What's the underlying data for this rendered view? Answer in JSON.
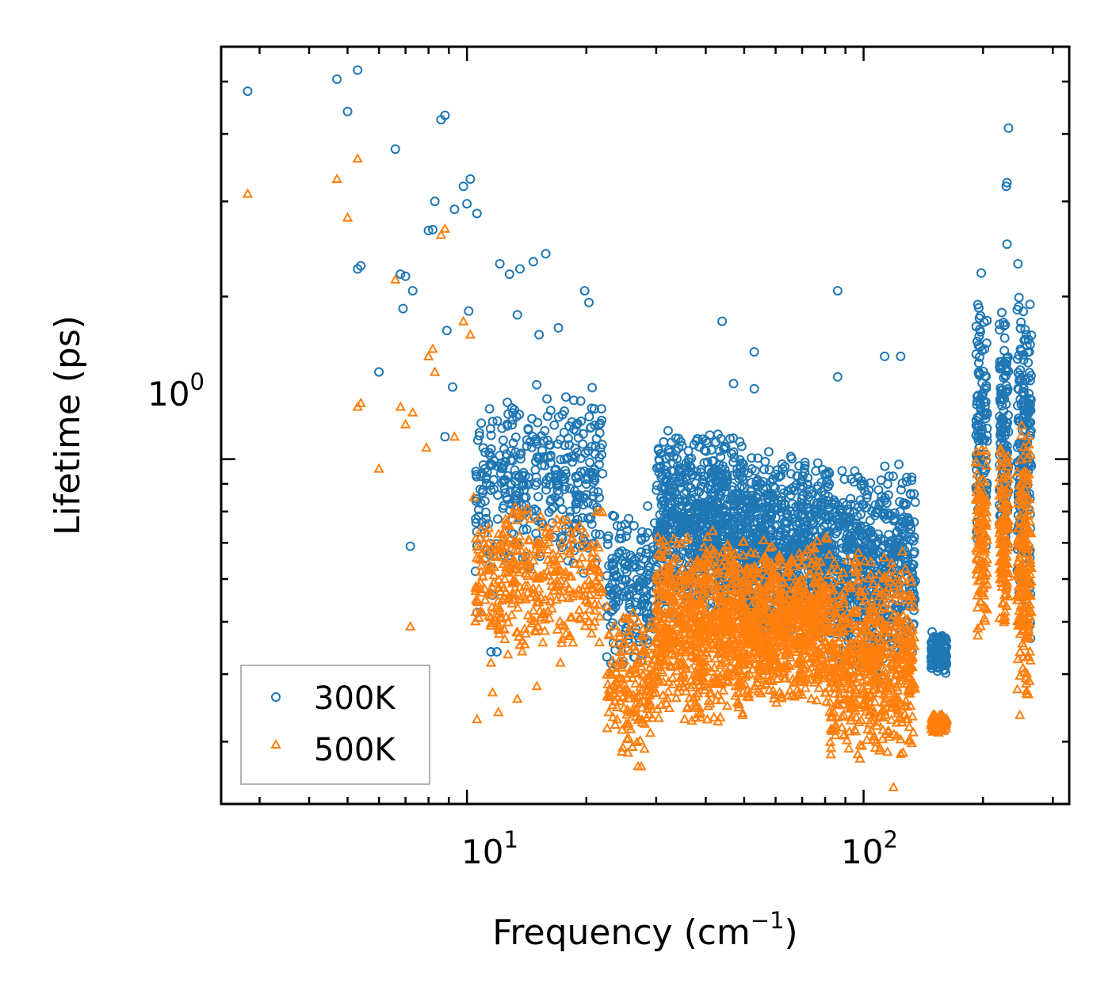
{
  "chart_data": {
    "type": "scatter",
    "xlabel": "Frequency (cm",
    "xlabel_exponent": "−1",
    "xlabel_suffix": ")",
    "ylabel": "Lifetime (ps)",
    "xscale": "log",
    "yscale": "log",
    "xlim": [
      2.4,
      330
    ],
    "ylim": [
      0.23,
      5.8
    ],
    "x_ticks": [
      {
        "value": 10,
        "base": "10",
        "exponent": "1"
      },
      {
        "value": 100,
        "base": "10",
        "exponent": "2"
      }
    ],
    "y_ticks": [
      {
        "value": 1,
        "base": "10",
        "exponent": "0"
      }
    ],
    "legend_position": "lower-left",
    "colors": {
      "series_300K": "#1f77b4",
      "series_500K": "#ff7f0e"
    },
    "series": [
      {
        "name": "300K",
        "marker": "circle",
        "color": "#1f77b4",
        "points": [
          [
            2.8,
            4.8
          ],
          [
            4.7,
            5.05
          ],
          [
            5.3,
            5.25
          ],
          [
            5.0,
            4.4
          ],
          [
            6.6,
            3.75
          ],
          [
            8.3,
            3.0
          ],
          [
            8.6,
            4.25
          ],
          [
            8.8,
            4.33
          ],
          [
            9.8,
            3.2
          ],
          [
            10.2,
            3.3
          ],
          [
            10.6,
            2.85
          ],
          [
            5.3,
            2.25
          ],
          [
            5.4,
            2.28
          ],
          [
            6.8,
            2.2
          ],
          [
            7.0,
            2.18
          ],
          [
            7.3,
            2.05
          ],
          [
            6.9,
            1.9
          ],
          [
            8.0,
            2.65
          ],
          [
            8.2,
            2.66
          ],
          [
            8.9,
            1.73
          ],
          [
            9.3,
            2.9
          ],
          [
            10.0,
            2.97
          ],
          [
            6.0,
            1.45
          ],
          [
            9.2,
            1.36
          ],
          [
            10.1,
            1.88
          ],
          [
            12.1,
            2.3
          ],
          [
            12.8,
            2.2
          ],
          [
            13.6,
            2.25
          ],
          [
            14.7,
            2.32
          ],
          [
            15.8,
            2.4
          ],
          [
            19.8,
            2.05
          ],
          [
            20.3,
            1.95
          ],
          [
            8.8,
            1.1
          ],
          [
            7.2,
            0.69
          ],
          [
            10.6,
            0.52
          ],
          [
            11.6,
            0.56
          ],
          [
            11.5,
            0.44
          ],
          [
            11.9,
            0.44
          ],
          [
            13.4,
            1.85
          ],
          [
            15.2,
            1.7
          ],
          [
            17.0,
            1.75
          ],
          [
            86.0,
            2.05
          ],
          [
            44.0,
            1.8
          ],
          [
            53.0,
            1.58
          ],
          [
            113.0,
            1.55
          ],
          [
            124.0,
            1.55
          ],
          [
            86.0,
            1.42
          ],
          [
            53.0,
            1.35
          ],
          [
            47.0,
            1.38
          ],
          [
            232.0,
            4.1
          ],
          [
            229.0,
            3.2
          ],
          [
            230.0,
            3.25
          ],
          [
            198.0,
            2.21
          ],
          [
            230.0,
            2.5
          ],
          [
            245.0,
            2.3
          ]
        ],
        "clusters": [
          {
            "x": [
              10.5,
              22.0
            ],
            "y": [
              0.6,
              1.4
            ],
            "n": 380
          },
          {
            "x": [
              22.5,
              30.0
            ],
            "y": [
              0.4,
              0.85
            ],
            "n": 180
          },
          {
            "x": [
              30.0,
              50.0
            ],
            "y": [
              0.5,
              1.15
            ],
            "n": 750
          },
          {
            "x": [
              50.0,
              82.0
            ],
            "y": [
              0.45,
              1.05
            ],
            "n": 750
          },
          {
            "x": [
              82.0,
              135.0
            ],
            "y": [
              0.38,
              1.0
            ],
            "n": 650
          },
          {
            "x": [
              148.0,
              162.0
            ],
            "y": [
              0.4,
              0.48
            ],
            "n": 120
          },
          {
            "x": [
              192.0,
              205.0
            ],
            "y": [
              0.6,
              2.1
            ],
            "n": 120
          },
          {
            "x": [
              220.0,
              232.0
            ],
            "y": [
              0.65,
              1.95
            ],
            "n": 130
          },
          {
            "x": [
              244.0,
              265.0
            ],
            "y": [
              0.42,
              2.25
            ],
            "n": 200
          }
        ]
      },
      {
        "name": "500K",
        "marker": "triangle",
        "color": "#ff7f0e",
        "points": [
          [
            2.8,
            3.1
          ],
          [
            4.7,
            3.3
          ],
          [
            5.3,
            3.6
          ],
          [
            5.0,
            2.8
          ],
          [
            6.6,
            2.15
          ],
          [
            8.3,
            1.45
          ],
          [
            8.6,
            2.6
          ],
          [
            8.8,
            2.67
          ],
          [
            9.8,
            1.8
          ],
          [
            10.2,
            1.7
          ],
          [
            5.3,
            1.25
          ],
          [
            5.4,
            1.27
          ],
          [
            6.0,
            0.96
          ],
          [
            6.8,
            1.25
          ],
          [
            7.0,
            1.16
          ],
          [
            7.3,
            1.22
          ],
          [
            7.9,
            1.05
          ],
          [
            8.0,
            1.55
          ],
          [
            8.2,
            1.6
          ],
          [
            9.3,
            1.1
          ],
          [
            10.4,
            0.85
          ],
          [
            7.2,
            0.49
          ],
          [
            10.6,
            0.33
          ],
          [
            11.6,
            0.37
          ],
          [
            11.5,
            0.42
          ],
          [
            12.0,
            0.34
          ],
          [
            13.4,
            0.36
          ],
          [
            15.0,
            0.38
          ],
          [
            17.2,
            0.42
          ],
          [
            27.0,
            0.27
          ],
          [
            27.5,
            0.27
          ],
          [
            119.0,
            0.247
          ]
        ],
        "clusters": [
          {
            "x": [
              10.5,
              22.0
            ],
            "y": [
              0.42,
              0.85
            ],
            "n": 380
          },
          {
            "x": [
              22.5,
              30.0
            ],
            "y": [
              0.28,
              0.56
            ],
            "n": 180
          },
          {
            "x": [
              30.0,
              50.0
            ],
            "y": [
              0.32,
              0.75
            ],
            "n": 750
          },
          {
            "x": [
              50.0,
              82.0
            ],
            "y": [
              0.34,
              0.72
            ],
            "n": 750
          },
          {
            "x": [
              82.0,
              135.0
            ],
            "y": [
              0.27,
              0.68
            ],
            "n": 650
          },
          {
            "x": [
              148.0,
              162.0
            ],
            "y": [
              0.31,
              0.34
            ],
            "n": 120
          },
          {
            "x": [
              192.0,
              205.0
            ],
            "y": [
              0.45,
              1.1
            ],
            "n": 120
          },
          {
            "x": [
              220.0,
              232.0
            ],
            "y": [
              0.48,
              1.1
            ],
            "n": 130
          },
          {
            "x": [
              244.0,
              265.0
            ],
            "y": [
              0.33,
              1.2
            ],
            "n": 200
          }
        ]
      }
    ]
  }
}
